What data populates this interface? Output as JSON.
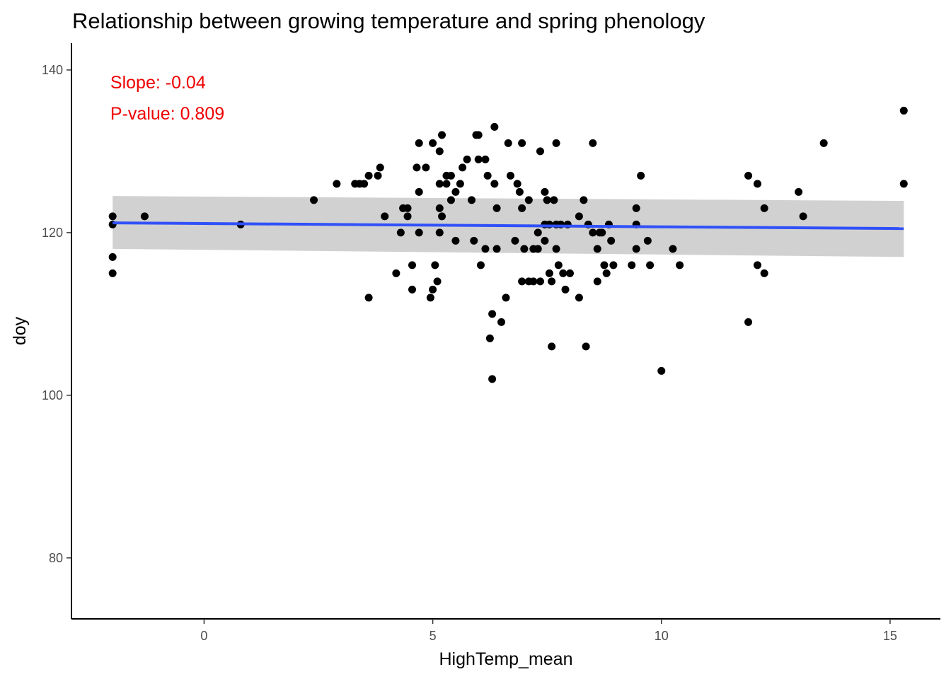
{
  "chart_data": {
    "type": "scatter",
    "title": "Relationship between growing temperature and spring phenology",
    "xlabel": "HighTemp_mean",
    "ylabel": "doy",
    "xlim": [
      -2.9,
      16.1
    ],
    "ylim": [
      72.5,
      143.3
    ],
    "x_ticks": [
      0,
      5,
      10,
      15
    ],
    "y_ticks": [
      80,
      100,
      120,
      140
    ],
    "grid": false,
    "annotations": [
      {
        "text": "Slope: -0.04",
        "color": "#ee0000"
      },
      {
        "text": "P-value: 0.809",
        "color": "#ee0000"
      }
    ],
    "trend": {
      "x": [
        -2.0,
        15.3
      ],
      "y": [
        121.2,
        120.5
      ],
      "ci_upper": [
        124.5,
        123.9
      ],
      "ci_lower": [
        118.0,
        117.0
      ],
      "line_color": "#3050f8",
      "band_color": "#cccccc"
    },
    "point_color": "#000000",
    "points": [
      [
        -2.0,
        122
      ],
      [
        -2.0,
        121
      ],
      [
        -2.0,
        117
      ],
      [
        -2.0,
        115
      ],
      [
        -1.3,
        122
      ],
      [
        0.8,
        121
      ],
      [
        2.4,
        124
      ],
      [
        2.9,
        126
      ],
      [
        3.3,
        126
      ],
      [
        3.4,
        126
      ],
      [
        3.5,
        126
      ],
      [
        3.6,
        127
      ],
      [
        3.6,
        112
      ],
      [
        3.8,
        127
      ],
      [
        3.85,
        128
      ],
      [
        3.95,
        122
      ],
      [
        4.2,
        115
      ],
      [
        4.3,
        120
      ],
      [
        4.35,
        123
      ],
      [
        4.45,
        123
      ],
      [
        4.45,
        122
      ],
      [
        4.55,
        113
      ],
      [
        4.55,
        116
      ],
      [
        4.65,
        128
      ],
      [
        4.7,
        131
      ],
      [
        4.7,
        125
      ],
      [
        4.7,
        120
      ],
      [
        4.85,
        128
      ],
      [
        4.95,
        112
      ],
      [
        5.0,
        113
      ],
      [
        5.0,
        131
      ],
      [
        5.05,
        116
      ],
      [
        5.1,
        114
      ],
      [
        5.15,
        126
      ],
      [
        5.15,
        123
      ],
      [
        5.15,
        120
      ],
      [
        5.15,
        130
      ],
      [
        5.2,
        132
      ],
      [
        5.2,
        122
      ],
      [
        5.3,
        127
      ],
      [
        5.3,
        126
      ],
      [
        5.4,
        127
      ],
      [
        5.4,
        124
      ],
      [
        5.5,
        125
      ],
      [
        5.5,
        119
      ],
      [
        5.6,
        126
      ],
      [
        5.65,
        128
      ],
      [
        5.75,
        129
      ],
      [
        5.85,
        124
      ],
      [
        5.9,
        119
      ],
      [
        5.95,
        132
      ],
      [
        6.0,
        132
      ],
      [
        6.0,
        129
      ],
      [
        6.05,
        116
      ],
      [
        6.15,
        129
      ],
      [
        6.15,
        118
      ],
      [
        6.2,
        127
      ],
      [
        6.25,
        107
      ],
      [
        6.3,
        102
      ],
      [
        6.3,
        110
      ],
      [
        6.35,
        133
      ],
      [
        6.35,
        126
      ],
      [
        6.4,
        123
      ],
      [
        6.4,
        118
      ],
      [
        6.5,
        109
      ],
      [
        6.6,
        112
      ],
      [
        6.65,
        131
      ],
      [
        6.7,
        127
      ],
      [
        6.8,
        119
      ],
      [
        6.85,
        126
      ],
      [
        6.9,
        125
      ],
      [
        6.95,
        131
      ],
      [
        6.95,
        123
      ],
      [
        6.95,
        114
      ],
      [
        7.0,
        118
      ],
      [
        7.1,
        124
      ],
      [
        7.1,
        114
      ],
      [
        7.2,
        118
      ],
      [
        7.2,
        114
      ],
      [
        7.3,
        120
      ],
      [
        7.3,
        118
      ],
      [
        7.35,
        114
      ],
      [
        7.35,
        130
      ],
      [
        7.45,
        125
      ],
      [
        7.45,
        121
      ],
      [
        7.45,
        119
      ],
      [
        7.5,
        124
      ],
      [
        7.55,
        121
      ],
      [
        7.55,
        115
      ],
      [
        7.6,
        114
      ],
      [
        7.6,
        106
      ],
      [
        7.65,
        124
      ],
      [
        7.7,
        131
      ],
      [
        7.7,
        121
      ],
      [
        7.7,
        118
      ],
      [
        7.75,
        116
      ],
      [
        7.8,
        121
      ],
      [
        7.85,
        115
      ],
      [
        7.9,
        113
      ],
      [
        7.95,
        121
      ],
      [
        8.0,
        115
      ],
      [
        8.2,
        122
      ],
      [
        8.2,
        112
      ],
      [
        8.3,
        124
      ],
      [
        8.35,
        106
      ],
      [
        8.4,
        121
      ],
      [
        8.5,
        131
      ],
      [
        8.5,
        120
      ],
      [
        8.6,
        118
      ],
      [
        8.6,
        114
      ],
      [
        8.65,
        120
      ],
      [
        8.7,
        120
      ],
      [
        8.75,
        116
      ],
      [
        8.8,
        115
      ],
      [
        8.85,
        121
      ],
      [
        8.9,
        119
      ],
      [
        8.95,
        116
      ],
      [
        9.35,
        116
      ],
      [
        9.45,
        121
      ],
      [
        9.45,
        123
      ],
      [
        9.45,
        118
      ],
      [
        9.55,
        127
      ],
      [
        9.7,
        119
      ],
      [
        9.75,
        116
      ],
      [
        10.0,
        103
      ],
      [
        10.25,
        118
      ],
      [
        10.4,
        116
      ],
      [
        11.9,
        127
      ],
      [
        11.9,
        109
      ],
      [
        12.1,
        126
      ],
      [
        12.1,
        116
      ],
      [
        12.25,
        123
      ],
      [
        12.25,
        115
      ],
      [
        13.0,
        125
      ],
      [
        13.1,
        122
      ],
      [
        13.55,
        131
      ],
      [
        15.3,
        135
      ],
      [
        15.3,
        126
      ]
    ]
  }
}
